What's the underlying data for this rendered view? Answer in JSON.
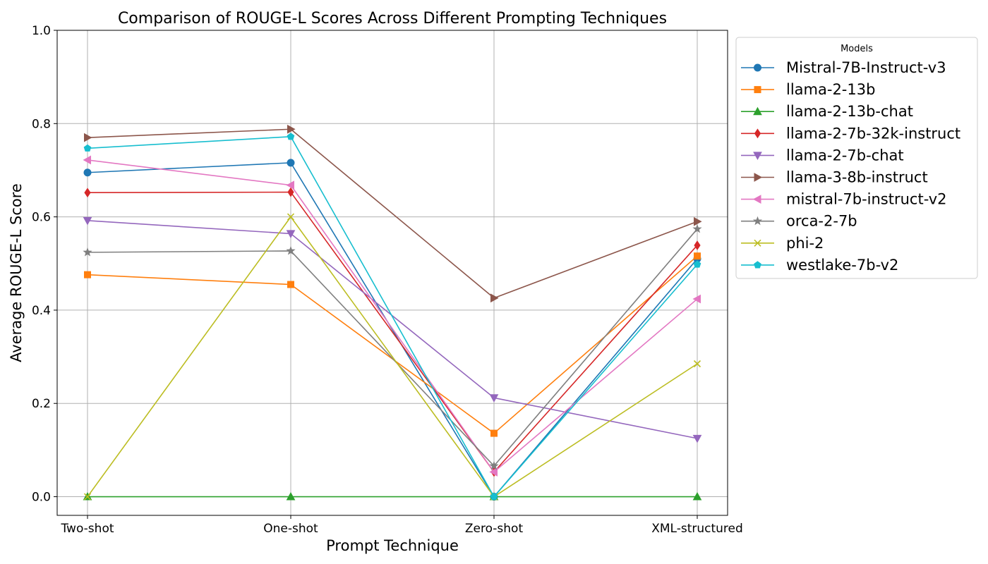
{
  "chart_data": {
    "type": "line",
    "title": "Comparison of ROUGE-L Scores Across Different Prompting Techniques",
    "xlabel": "Prompt Technique",
    "ylabel": "Average ROUGE-L Score",
    "categories": [
      "Two-shot",
      "One-shot",
      "Zero-shot",
      "XML-structured"
    ],
    "ylim": [
      -0.04,
      1.0
    ],
    "yticks": [
      0.0,
      0.2,
      0.4,
      0.6,
      0.8,
      1.0
    ],
    "ytick_labels": [
      "0.0",
      "0.2",
      "0.4",
      "0.6",
      "0.8",
      "1.0"
    ],
    "grid": true,
    "legend": {
      "title": "Models",
      "placement": "outside-top-right"
    },
    "series": [
      {
        "name": "Mistral-7B-Instruct-v3",
        "color": "#1f77b4",
        "marker": "circle",
        "values": [
          0.695,
          0.716,
          0.0,
          0.51
        ]
      },
      {
        "name": "llama-2-13b",
        "color": "#ff7f0e",
        "marker": "square",
        "values": [
          0.476,
          0.455,
          0.136,
          0.516
        ]
      },
      {
        "name": "llama-2-13b-chat",
        "color": "#2ca02c",
        "marker": "triangle-up",
        "values": [
          0.0,
          0.0,
          0.0,
          0.0
        ]
      },
      {
        "name": "llama-2-7b-32k-instruct",
        "color": "#d62728",
        "marker": "diamond",
        "values": [
          0.652,
          0.653,
          0.053,
          0.539
        ]
      },
      {
        "name": "llama-2-7b-chat",
        "color": "#9467bd",
        "marker": "triangle-down",
        "values": [
          0.592,
          0.564,
          0.212,
          0.125
        ]
      },
      {
        "name": "llama-3-8b-instruct",
        "color": "#8c564b",
        "marker": "triangle-right",
        "values": [
          0.77,
          0.788,
          0.426,
          0.59
        ]
      },
      {
        "name": "mistral-7b-instruct-v2",
        "color": "#e377c2",
        "marker": "triangle-left",
        "values": [
          0.722,
          0.668,
          0.053,
          0.424
        ]
      },
      {
        "name": "orca-2-7b",
        "color": "#7f7f7f",
        "marker": "star",
        "values": [
          0.524,
          0.527,
          0.066,
          0.574
        ]
      },
      {
        "name": "phi-2",
        "color": "#bcbd22",
        "marker": "x",
        "values": [
          0.0,
          0.6,
          0.0,
          0.285
        ]
      },
      {
        "name": "westlake-7b-v2",
        "color": "#17becf",
        "marker": "pentagon",
        "values": [
          0.747,
          0.772,
          0.0,
          0.498
        ]
      }
    ]
  }
}
